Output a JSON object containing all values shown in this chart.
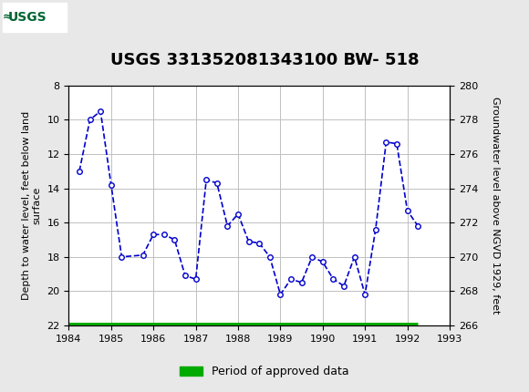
{
  "title": "USGS 331352081343100 BW- 518",
  "ylabel_left": "Depth to water level, feet below land\nsurface",
  "ylabel_right": "Groundwater level above NGVD 1929, feet",
  "xlim": [
    1984,
    1993
  ],
  "ylim_left": [
    22,
    8
  ],
  "ylim_right": [
    266,
    280
  ],
  "xticks": [
    1984,
    1985,
    1986,
    1987,
    1988,
    1989,
    1990,
    1991,
    1992,
    1993
  ],
  "yticks_left": [
    8,
    10,
    12,
    14,
    16,
    18,
    20,
    22
  ],
  "yticks_right": [
    266,
    268,
    270,
    272,
    274,
    276,
    278,
    280
  ],
  "data_x": [
    1984.25,
    1984.5,
    1984.75,
    1985.0,
    1985.25,
    1985.75,
    1986.0,
    1986.25,
    1986.5,
    1986.75,
    1987.0,
    1987.25,
    1987.5,
    1987.75,
    1988.0,
    1988.25,
    1988.5,
    1988.75,
    1989.0,
    1989.25,
    1989.5,
    1989.75,
    1990.0,
    1990.25,
    1990.5,
    1990.75,
    1991.0,
    1991.25,
    1991.5,
    1991.75,
    1992.0,
    1992.25
  ],
  "data_y": [
    13.0,
    10.0,
    9.5,
    13.8,
    18.0,
    17.9,
    16.7,
    16.7,
    17.0,
    19.1,
    19.3,
    13.5,
    13.7,
    16.2,
    15.5,
    17.1,
    17.2,
    18.0,
    20.2,
    19.3,
    19.5,
    18.0,
    18.3,
    19.3,
    19.7,
    18.0,
    20.2,
    16.4,
    11.3,
    11.4,
    15.3,
    16.2
  ],
  "line_color": "#0000CC",
  "marker_color": "#0000CC",
  "marker_face": "white",
  "line_style": "--",
  "line_width": 1.2,
  "marker_size": 4,
  "green_bar_color": "#00AA00",
  "green_bar_y": 22,
  "green_bar_xstart": 1984,
  "green_bar_xend": 1992.25,
  "header_bg_color": "#006633",
  "bg_color": "#e8e8e8",
  "plot_bg_color": "#ffffff",
  "grid_color": "#c0c0c0",
  "title_fontsize": 13,
  "axis_label_fontsize": 8,
  "tick_fontsize": 8,
  "legend_fontsize": 9
}
